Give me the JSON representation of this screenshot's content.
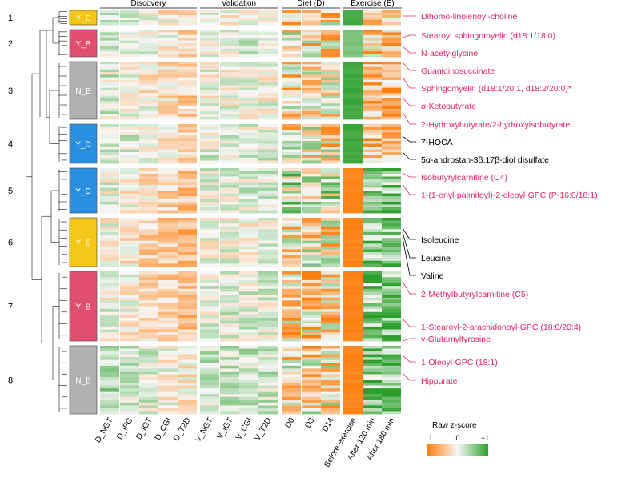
{
  "chart_data": {
    "type": "heatmap",
    "panels": [
      {
        "name": "Discovery",
        "columns": [
          "D_NGT",
          "D_IFG",
          "D_IGT",
          "D_CGI",
          "D_T2D"
        ]
      },
      {
        "name": "Validation",
        "columns": [
          "V_NGT",
          "V_IGT",
          "V_CGI",
          "V_T2D"
        ]
      },
      {
        "name": "Diet (D)",
        "columns": [
          "D0",
          "D3",
          "D14"
        ]
      },
      {
        "name": "Exercise (E)",
        "columns": [
          "Before exercise",
          "After 120 min",
          "After 180 min"
        ]
      }
    ],
    "clusters": [
      {
        "number": "1",
        "label": "Y_E",
        "color": "#f5c518",
        "rows": 6
      },
      {
        "number": "2",
        "label": "Y_B",
        "color": "#e0506e",
        "rows": 10
      },
      {
        "number": "3",
        "label": "N_B",
        "color": "#b0b0b0",
        "rows": 22
      },
      {
        "number": "4",
        "label": "Y_D",
        "color": "#2b8fe0",
        "rows": 14
      },
      {
        "number": "5",
        "label": "Y_D",
        "color": "#2b8fe0",
        "rows": 16
      },
      {
        "number": "6",
        "label": "Y_E",
        "color": "#f5c518",
        "rows": 17
      },
      {
        "number": "7",
        "label": "Y_B",
        "color": "#e0506e",
        "rows": 24
      },
      {
        "number": "8",
        "label": "N_B",
        "color": "#b0b0b0",
        "rows": 24
      }
    ],
    "annotations": [
      {
        "text": "Dihomo-linolenoyl-choline",
        "highlight": true
      },
      {
        "text": "Stearoyl sphingomyelin (d18:1/18:0)",
        "highlight": true
      },
      {
        "text": "N-acetylglycine",
        "highlight": true
      },
      {
        "text": "Guanidinosuccinate",
        "highlight": true
      },
      {
        "text": "Sphingomyelin (d18:1/20:1, d18:2/20:0)*",
        "highlight": true
      },
      {
        "text": "α-Ketobutyrate",
        "highlight": true
      },
      {
        "text": "2-Hydroxybutyrate/2-hydroxyisobutyrate",
        "highlight": true
      },
      {
        "text": "7-HOCA",
        "highlight": false
      },
      {
        "text": "5α-androstan-3β,17β-diol disulfate",
        "highlight": false
      },
      {
        "text": "Isobutyrylcarnitine (C4)",
        "highlight": true
      },
      {
        "text": "1-(1-enyl-palmitoyl)-2-oleoyl-GPC (P-16:0/18:1)",
        "highlight": true
      },
      {
        "text": "Isoleucine",
        "highlight": false
      },
      {
        "text": "Leucine",
        "highlight": false
      },
      {
        "text": "Valine",
        "highlight": false
      },
      {
        "text": "2-Methylbutyrylcarnitine (C5)",
        "highlight": true
      },
      {
        "text": "1-Stearoyl-2-arachidonoyl-GPC (18:0/20:4)",
        "highlight": true
      },
      {
        "text": "γ-Glutamyltyrosine",
        "highlight": true
      },
      {
        "text": "1-Oleoyl-GPC (18:1)",
        "highlight": true
      },
      {
        "text": "Hippurate",
        "highlight": true
      }
    ],
    "legend": {
      "title": "Raw z-score",
      "ticks": [
        "1",
        "0",
        "−1"
      ],
      "range": [
        1,
        -1
      ]
    },
    "colors": {
      "high": "#ff7f0e",
      "mid": "#f7f7f7",
      "low": "#2ca02c",
      "highlight_text": "#e8265e",
      "normal_text": "#000000"
    }
  }
}
